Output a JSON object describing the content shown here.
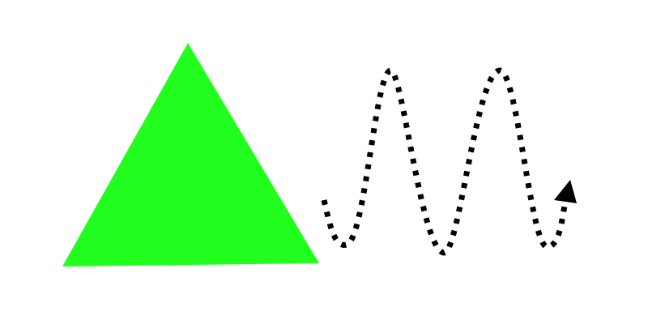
{
  "diagram": {
    "background_color": "#ffffff",
    "triangle": {
      "fill_color": "#22ff1e"
    },
    "wavy_arrow": {
      "stroke_color": "#000000",
      "arrowhead_color": "#000000",
      "line_style": "dotted"
    }
  }
}
